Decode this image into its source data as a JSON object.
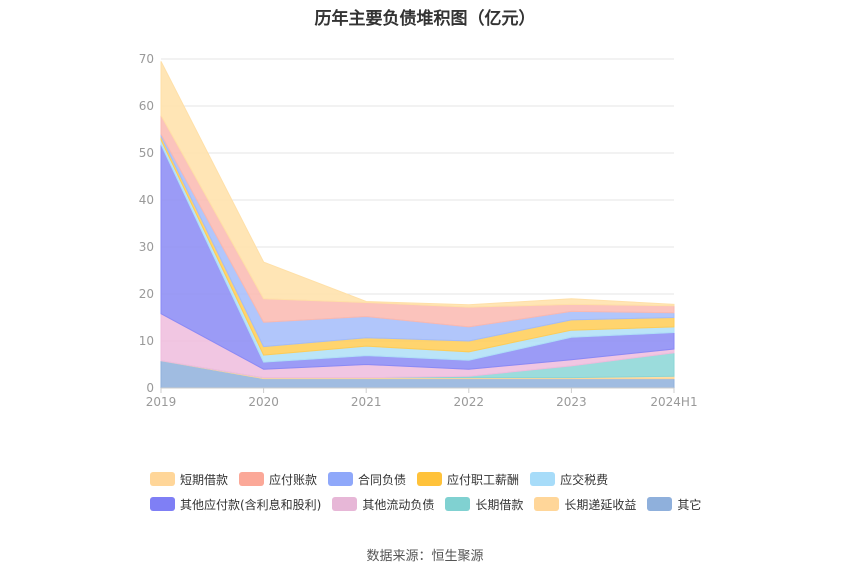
{
  "chart_data": {
    "type": "area",
    "stacked": true,
    "title": "历年主要负债堆积图（亿元）",
    "x": [
      "2019",
      "2020",
      "2021",
      "2022",
      "2023",
      "2024H1"
    ],
    "ylim": [
      0,
      70
    ],
    "yticks": [
      0,
      10,
      20,
      30,
      40,
      50,
      60,
      70
    ],
    "grid": true,
    "legend_position": "bottom",
    "series": [
      {
        "name": "其它",
        "color": "#8fb0dc",
        "values": [
          5.8,
          2.0,
          2.0,
          2.0,
          2.0,
          2.0
        ]
      },
      {
        "name": "长期递延收益",
        "color": "#ffd699",
        "values": [
          0.0,
          0.2,
          0.2,
          0.2,
          0.2,
          0.5
        ]
      },
      {
        "name": "长期借款",
        "color": "#8ad6d6",
        "values": [
          0.0,
          0.0,
          0.0,
          0.3,
          2.5,
          5.0
        ]
      },
      {
        "name": "其他流动负债",
        "color": "#efbcdd",
        "values": [
          10.0,
          1.8,
          2.8,
          1.5,
          1.3,
          0.8
        ]
      },
      {
        "name": "其他应付款(含利息和股利)",
        "color": "#8a8af5",
        "values": [
          36.0,
          1.5,
          1.9,
          1.9,
          4.8,
          3.5
        ]
      },
      {
        "name": "应交税费",
        "color": "#aedff7",
        "values": [
          1.0,
          1.5,
          2.0,
          1.8,
          1.5,
          1.2
        ]
      },
      {
        "name": "应付职工薪酬",
        "color": "#ffcc55",
        "values": [
          0.7,
          1.8,
          1.8,
          2.3,
          2.2,
          2.0
        ]
      },
      {
        "name": "合同负债",
        "color": "#a3bcfa",
        "values": [
          0.5,
          5.2,
          4.5,
          3.0,
          1.8,
          1.0
        ]
      },
      {
        "name": "应付账款",
        "color": "#fab9b0",
        "values": [
          4.0,
          5.0,
          3.0,
          4.2,
          1.5,
          1.5
        ]
      },
      {
        "name": "短期借款",
        "color": "#ffe0a8",
        "values": [
          11.5,
          7.8,
          0.2,
          0.5,
          1.2,
          0.3
        ]
      }
    ],
    "source": "数据来源：恒生聚源"
  },
  "legend_rows": [
    [
      {
        "label": "短期借款",
        "color": "#ffd699"
      },
      {
        "label": "应付账款",
        "color": "#fba898"
      },
      {
        "label": "合同负债",
        "color": "#8fa8fa"
      },
      {
        "label": "应付职工薪酬",
        "color": "#ffc23a"
      },
      {
        "label": "应交税费",
        "color": "#a7dcf9"
      }
    ],
    [
      {
        "label": "其他应付款(含利息和股利)",
        "color": "#7f7ff5"
      },
      {
        "label": "其他流动负债",
        "color": "#e7b7d7"
      },
      {
        "label": "长期借款",
        "color": "#80d1d1"
      },
      {
        "label": "长期递延收益",
        "color": "#ffd699"
      },
      {
        "label": "其它",
        "color": "#8fb0dc"
      }
    ]
  ]
}
